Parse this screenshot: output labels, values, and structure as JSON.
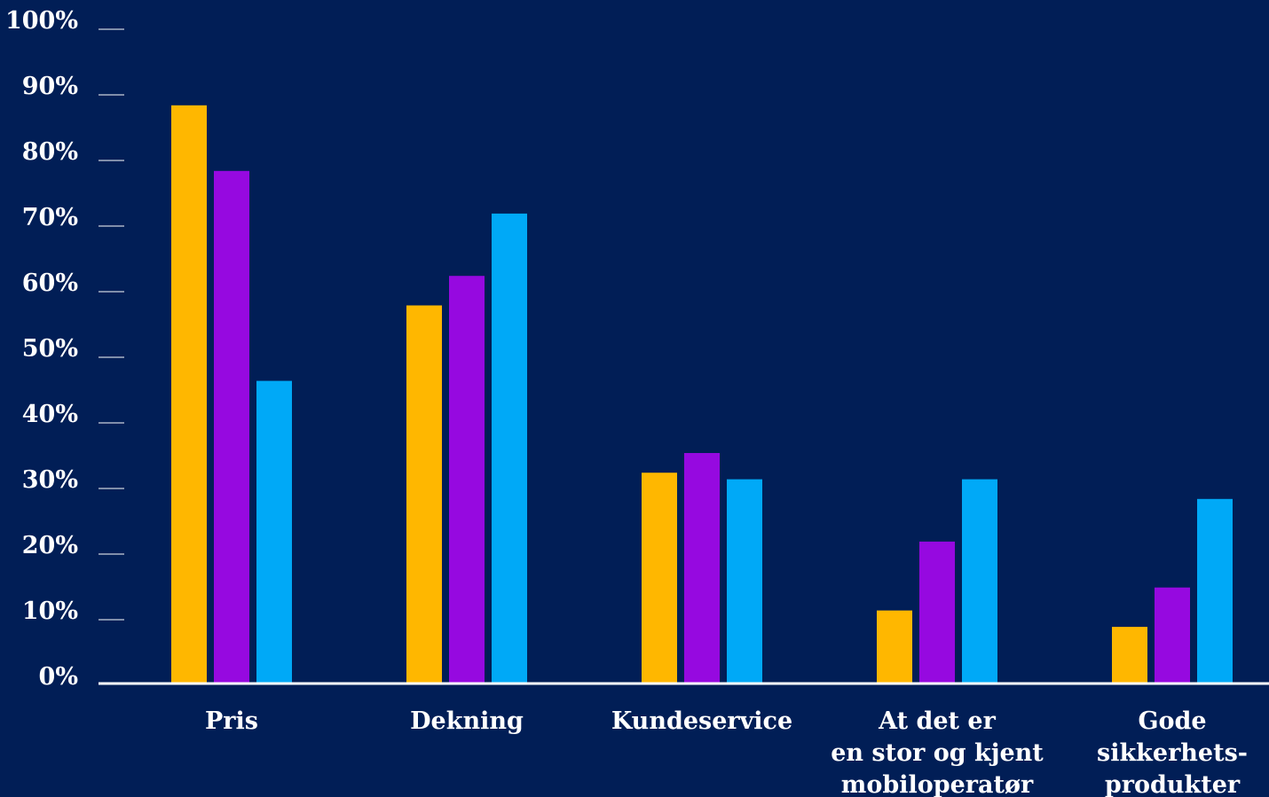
{
  "chart_data": {
    "type": "bar",
    "categories": [
      [
        "Pris"
      ],
      [
        "Dekning"
      ],
      [
        "Kundeservice"
      ],
      [
        "At det er",
        "en stor og kjent",
        "mobiloperatør"
      ],
      [
        "Gode",
        "sikkerhets-",
        "produkter"
      ]
    ],
    "series": [
      {
        "color": "#ffb700",
        "values": [
          88,
          57.5,
          32,
          11,
          8.5
        ]
      },
      {
        "color": "#9609e0",
        "values": [
          78,
          62,
          35,
          21.5,
          14.5
        ]
      },
      {
        "color": "#00a9f7",
        "values": [
          46,
          71.5,
          31,
          31,
          28
        ]
      }
    ],
    "y_ticks": [
      "0%",
      "10%",
      "20%",
      "30%",
      "40%",
      "50%",
      "60%",
      "70%",
      "80%",
      "90%",
      "100%"
    ],
    "ylim": [
      0,
      100
    ],
    "grid": false,
    "background_color": "#011e56",
    "axis_color": "#ffffff"
  }
}
